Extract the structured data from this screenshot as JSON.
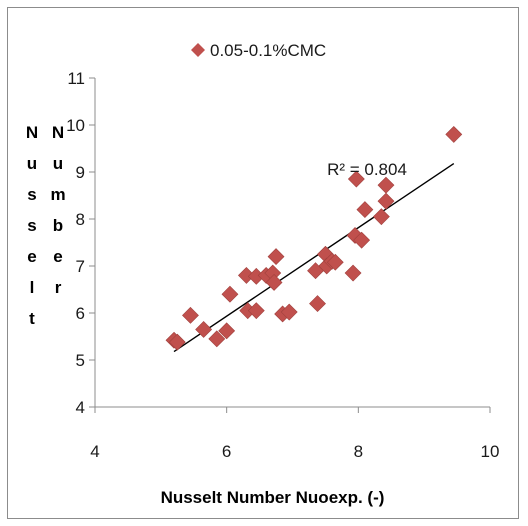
{
  "chart_data": {
    "type": "scatter",
    "title": "",
    "xlabel": "Nusselt Number Nuoexp.  (-)",
    "ylabel_columns": [
      "Nusselt",
      "Number"
    ],
    "xlim": [
      4,
      10
    ],
    "ylim": [
      4,
      11
    ],
    "x_ticks": [
      "4",
      "6",
      "8",
      "10"
    ],
    "y_ticks": [
      "4",
      "5",
      "6",
      "7",
      "8",
      "9",
      "10",
      "11"
    ],
    "grid": false,
    "legend_position": "top-center",
    "series": [
      {
        "name": "0.05-0.1%CMC",
        "color": "#c0504d",
        "marker": "diamond",
        "points": [
          [
            5.2,
            5.42
          ],
          [
            5.25,
            5.38
          ],
          [
            5.45,
            5.95
          ],
          [
            5.65,
            5.65
          ],
          [
            5.85,
            5.45
          ],
          [
            6.0,
            5.62
          ],
          [
            6.05,
            6.4
          ],
          [
            6.3,
            6.8
          ],
          [
            6.32,
            6.05
          ],
          [
            6.45,
            6.05
          ],
          [
            6.45,
            6.78
          ],
          [
            6.6,
            6.8
          ],
          [
            6.7,
            6.85
          ],
          [
            6.75,
            7.2
          ],
          [
            6.72,
            6.65
          ],
          [
            6.85,
            5.98
          ],
          [
            6.95,
            6.02
          ],
          [
            7.35,
            6.9
          ],
          [
            7.38,
            6.2
          ],
          [
            7.5,
            7.25
          ],
          [
            7.52,
            7.0
          ],
          [
            7.6,
            7.1
          ],
          [
            7.65,
            7.08
          ],
          [
            7.92,
            6.85
          ],
          [
            7.95,
            7.65
          ],
          [
            7.97,
            8.85
          ],
          [
            8.05,
            7.55
          ],
          [
            8.1,
            8.2
          ],
          [
            8.35,
            8.05
          ],
          [
            8.42,
            8.38
          ],
          [
            8.42,
            8.72
          ],
          [
            9.45,
            9.8
          ]
        ]
      }
    ],
    "trendline": {
      "type": "linear",
      "x": [
        5.2,
        9.45
      ],
      "y": [
        5.18,
        9.18
      ],
      "label": "R² = 0.804"
    }
  }
}
